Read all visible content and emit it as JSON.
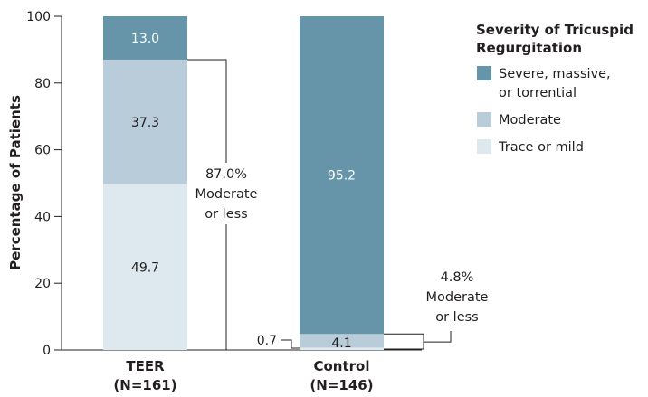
{
  "chart_data": {
    "type": "bar",
    "stacked": true,
    "categories": [
      {
        "name": "TEER",
        "n": "(N=161)"
      },
      {
        "name": "Control",
        "n": "(N=146)"
      }
    ],
    "series": [
      {
        "name": "Trace or mild",
        "values": [
          49.7,
          0.7
        ],
        "labels": [
          "49.7",
          "0.7"
        ],
        "color": "#dde9ee"
      },
      {
        "name": "Moderate",
        "values": [
          37.3,
          4.1
        ],
        "labels": [
          "37.3",
          "4.1"
        ],
        "color": "#b8ccd9"
      },
      {
        "name": "Severe, massive, or torrential",
        "legend_lines": [
          "Severe, massive,",
          "or torrential"
        ],
        "values": [
          13.0,
          95.2
        ],
        "labels": [
          "13.0",
          "95.2"
        ],
        "color": "#6695aa"
      }
    ],
    "ylabel": "Percentage of Patients",
    "ylim": [
      0,
      100
    ],
    "yticks": [
      "0",
      "20",
      "40",
      "60",
      "80",
      "100"
    ],
    "legend": {
      "title_lines": [
        "Severity of Tricuspid",
        "Regurgitation"
      ],
      "placement": "top-right"
    },
    "annotations": {
      "teer": {
        "lines": [
          "87.0%",
          "Moderate",
          "or less"
        ],
        "value": 87.0
      },
      "control": {
        "lines": [
          "4.8%",
          "Moderate",
          "or less"
        ],
        "value": 4.8
      }
    }
  }
}
